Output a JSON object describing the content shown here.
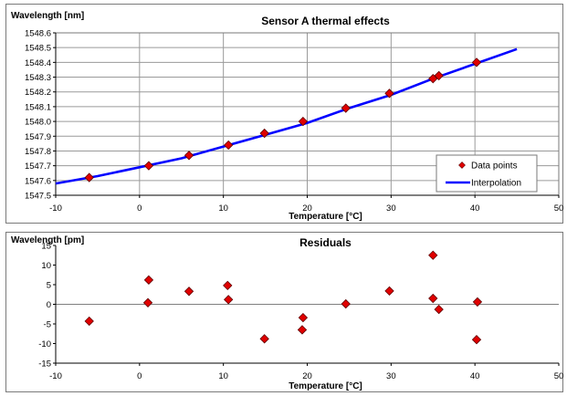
{
  "chart_data": [
    {
      "type": "scatter",
      "title": "Sensor A thermal effects",
      "ylabel": "Wavelength [nm]",
      "xlabel": "Temperature [°C]",
      "xlim": [
        -10,
        50
      ],
      "ylim": [
        1547.5,
        1548.6
      ],
      "xticks": [
        "-10",
        "0",
        "10",
        "20",
        "30",
        "40",
        "50"
      ],
      "yticks": [
        "1547.5",
        "1547.6",
        "1547.7",
        "1547.8",
        "1547.9",
        "1548.0",
        "1548.1",
        "1548.2",
        "1548.3",
        "1548.4",
        "1548.5",
        "1548.6"
      ],
      "grid": true,
      "legend": "bottom-right",
      "series": [
        {
          "name": "Data points",
          "kind": "marker",
          "color": "#e00000",
          "x": [
            -6.0,
            1.1,
            5.9,
            10.6,
            14.9,
            19.5,
            24.6,
            29.8,
            35.0,
            35.7,
            40.2
          ],
          "y": [
            1547.62,
            1547.7,
            1547.77,
            1547.84,
            1547.92,
            1548.0,
            1548.09,
            1548.19,
            1548.29,
            1548.31,
            1548.4
          ]
        },
        {
          "name": "Interpolation",
          "kind": "line",
          "color": "#0000ff",
          "x": [
            -10,
            -5,
            0,
            5,
            10,
            15,
            20,
            25,
            30,
            35,
            40,
            45
          ],
          "y": [
            1547.58,
            1547.63,
            1547.69,
            1547.75,
            1547.83,
            1547.91,
            1547.99,
            1548.09,
            1548.18,
            1548.29,
            1548.39,
            1548.49
          ]
        }
      ]
    },
    {
      "type": "scatter",
      "title": "Residuals",
      "ylabel": "Wavelength [pm]",
      "xlabel": "Temperature [°C]",
      "xlim": [
        -10,
        50
      ],
      "ylim": [
        -15,
        15
      ],
      "xticks": [
        "-10",
        "0",
        "10",
        "20",
        "30",
        "40",
        "50"
      ],
      "yticks": [
        "15",
        "10",
        "5",
        "0",
        "-5",
        "-10",
        "-15"
      ],
      "grid": false,
      "series": [
        {
          "kind": "marker",
          "color": "#e00000",
          "x": [
            -6.0,
            1.1,
            1.0,
            5.9,
            10.5,
            10.6,
            14.9,
            19.5,
            19.4,
            24.6,
            29.8,
            35.0,
            35.0,
            35.7,
            40.3,
            40.2
          ],
          "y": [
            -4.3,
            6.2,
            0.4,
            3.3,
            4.8,
            1.2,
            -8.8,
            -3.4,
            -6.5,
            0.1,
            3.4,
            12.5,
            1.5,
            -1.3,
            0.6,
            -9.0
          ]
        }
      ]
    }
  ]
}
